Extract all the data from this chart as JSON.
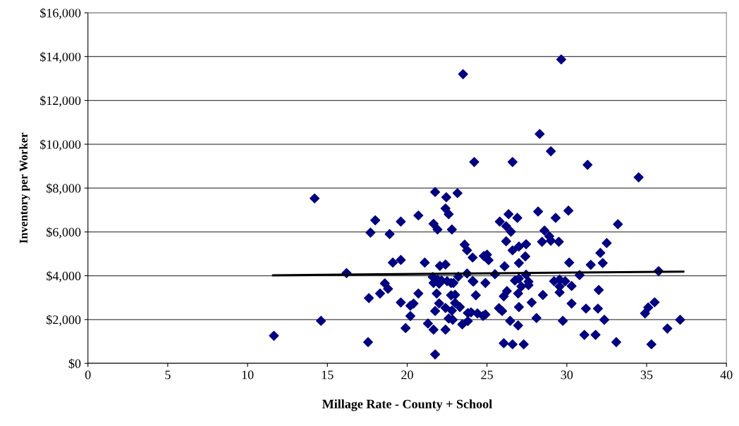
{
  "chart_data": {
    "type": "scatter",
    "xlabel": "Millage Rate - County + School",
    "ylabel": "Inventory per Worker",
    "xlim": [
      0,
      40
    ],
    "xticks": [
      0,
      5,
      10,
      15,
      20,
      25,
      30,
      35,
      40
    ],
    "ylim": [
      0,
      16000
    ],
    "yticks": [
      {
        "value": 0,
        "label": "$0"
      },
      {
        "value": 2000,
        "label": "$2,000"
      },
      {
        "value": 4000,
        "label": "$4,000"
      },
      {
        "value": 6000,
        "label": "$6,000"
      },
      {
        "value": 8000,
        "label": "$8,000"
      },
      {
        "value": 10000,
        "label": "$10,000"
      },
      {
        "value": 12000,
        "label": "$12,000"
      },
      {
        "value": 14000,
        "label": "$14,000"
      },
      {
        "value": 16000,
        "label": "$16,000"
      }
    ],
    "grid": "y",
    "legend": false,
    "marker": "diamond",
    "series": [
      {
        "color": "#000080",
        "x": [
          11.65,
          14.2,
          14.6,
          16.2,
          17.55,
          17.6,
          18.0,
          17.7,
          18.9,
          19.6,
          20.7,
          19.1,
          19.6,
          21.1,
          18.6,
          18.8,
          18.3,
          19.6,
          20.4,
          20.2,
          20.2,
          20.7,
          19.9,
          21.3,
          24.2,
          26.6,
          31.3,
          21.75,
          22.45,
          23.15,
          22.4,
          22.6,
          21.65,
          21.9,
          22.8,
          26.35,
          26.9,
          25.8,
          26.2,
          26.5,
          28.2,
          29.3,
          30.1,
          28.6,
          28.9,
          29.0,
          28.45,
          29.5,
          23.6,
          23.75,
          26.2,
          26.6,
          27.0,
          27.45,
          27.4,
          27.0,
          26.1,
          24.1,
          24.8,
          25.0,
          25.1,
          22.05,
          22.4,
          30.15,
          31.5,
          21.6,
          21.9,
          21.65,
          22.0,
          22.15,
          22.5,
          22.75,
          22.9,
          23.2,
          23.75,
          24.1,
          24.15,
          24.9,
          25.5,
          26.75,
          27.0,
          27.45,
          27.6,
          27.6,
          27.15,
          29.2,
          29.55,
          29.9,
          29.55,
          29.55,
          30.3,
          30.8,
          32.0,
          21.85,
          22.75,
          23.0,
          24.3,
          26.05,
          26.25,
          26.95,
          28.5,
          22.0,
          23.0,
          22.4,
          22.8,
          23.3,
          21.75,
          27.8,
          30.3,
          25.75,
          25.95,
          27.0,
          31.2,
          31.95,
          22.6,
          22.85,
          23.8,
          24.0,
          24.4,
          24.75,
          24.9,
          23.45,
          23.8,
          21.65,
          22.4,
          26.45,
          26.95,
          28.1,
          29.75,
          26.05,
          26.6,
          27.3,
          31.1,
          31.8,
          21.75,
          34.5,
          33.2,
          32.5,
          32.1,
          32.25,
          35.75,
          32.35,
          33.1,
          34.9,
          35.1,
          35.5,
          36.3,
          37.1,
          35.3,
          23.5,
          29.65,
          28.3,
          29.0
        ],
        "values": [
          1260,
          7530,
          1940,
          4120,
          970,
          2980,
          6530,
          5970,
          5900,
          6470,
          6750,
          4600,
          4720,
          4600,
          3650,
          3400,
          3190,
          2780,
          2730,
          2630,
          2160,
          3190,
          1610,
          1820,
          9190,
          9190,
          9060,
          7820,
          7580,
          7770,
          7070,
          6810,
          6370,
          6110,
          6110,
          6810,
          6640,
          6470,
          6260,
          6010,
          6930,
          6640,
          6970,
          6060,
          5800,
          5600,
          5550,
          5550,
          5420,
          5160,
          5570,
          5160,
          5330,
          5440,
          4880,
          4580,
          4430,
          4830,
          4900,
          4960,
          4710,
          4450,
          4510,
          4600,
          4500,
          3940,
          3830,
          3670,
          3640,
          3780,
          3750,
          3670,
          3670,
          3960,
          4100,
          3760,
          3730,
          3670,
          4070,
          3780,
          3870,
          4050,
          3730,
          3570,
          3510,
          3750,
          3830,
          3750,
          3510,
          3240,
          3530,
          4030,
          3350,
          3190,
          3110,
          3130,
          3110,
          3060,
          3300,
          3190,
          3120,
          2740,
          2760,
          2530,
          2410,
          2570,
          2390,
          2780,
          2730,
          2520,
          2390,
          2570,
          2500,
          2500,
          2050,
          1990,
          2300,
          2330,
          2280,
          2170,
          2230,
          1780,
          1930,
          1540,
          1540,
          1940,
          1730,
          2070,
          1940,
          920,
          870,
          870,
          1300,
          1300,
          410,
          8490,
          6350,
          5490,
          5040,
          4580,
          4210,
          1990,
          970,
          2280,
          2550,
          2790,
          1590,
          1990,
          870,
          13200,
          13870,
          10470,
          9680
        ]
      },
      {
        "type": "line",
        "color": "#000000",
        "marker": "none",
        "x": [
          11.6,
          37.3
        ],
        "values": [
          4020,
          4190
        ]
      }
    ]
  }
}
